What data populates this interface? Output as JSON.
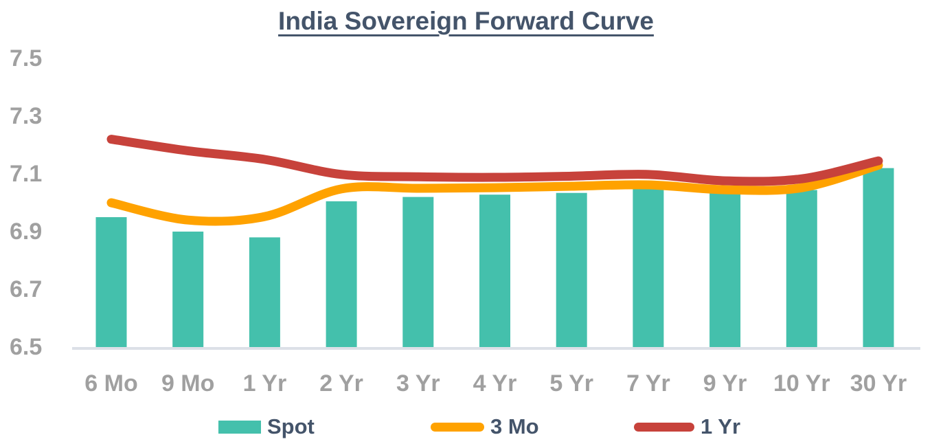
{
  "title": "India Sovereign Forward Curve",
  "colors": {
    "title_text": "#44546A",
    "axis_label_text": "#A0A0A0",
    "axis_line": "#DCE0E7",
    "background": "#FFFFFF"
  },
  "chart_data": {
    "type": "combo",
    "title": "India Sovereign Forward Curve",
    "categories": [
      "6 Mo",
      "9 Mo",
      "1 Yr",
      "2 Yr",
      "3 Yr",
      "4 Yr",
      "5 Yr",
      "7 Yr",
      "9 Yr",
      "10 Yr",
      "30 Yr"
    ],
    "series": [
      {
        "name": "Spot",
        "type": "bar",
        "color": "#44C0AC",
        "values": [
          6.95,
          6.9,
          6.88,
          7.005,
          7.02,
          7.028,
          7.034,
          7.048,
          7.035,
          7.044,
          7.12
        ]
      },
      {
        "name": "3 Mo",
        "type": "line",
        "color": "#FFA200",
        "values": [
          7.0,
          6.94,
          6.952,
          7.048,
          7.05,
          7.052,
          7.057,
          7.062,
          7.045,
          7.052,
          7.13
        ]
      },
      {
        "name": "1 Yr",
        "type": "line",
        "color": "#C7423B",
        "values": [
          7.22,
          7.18,
          7.15,
          7.098,
          7.09,
          7.088,
          7.092,
          7.098,
          7.076,
          7.083,
          7.145
        ]
      }
    ],
    "xlabel": "",
    "ylabel": "",
    "ylim": [
      6.5,
      7.5
    ],
    "yticks": [
      7.5,
      7.3,
      7.1,
      6.9,
      6.7,
      6.5
    ],
    "grid": false,
    "legend_position": "bottom"
  }
}
